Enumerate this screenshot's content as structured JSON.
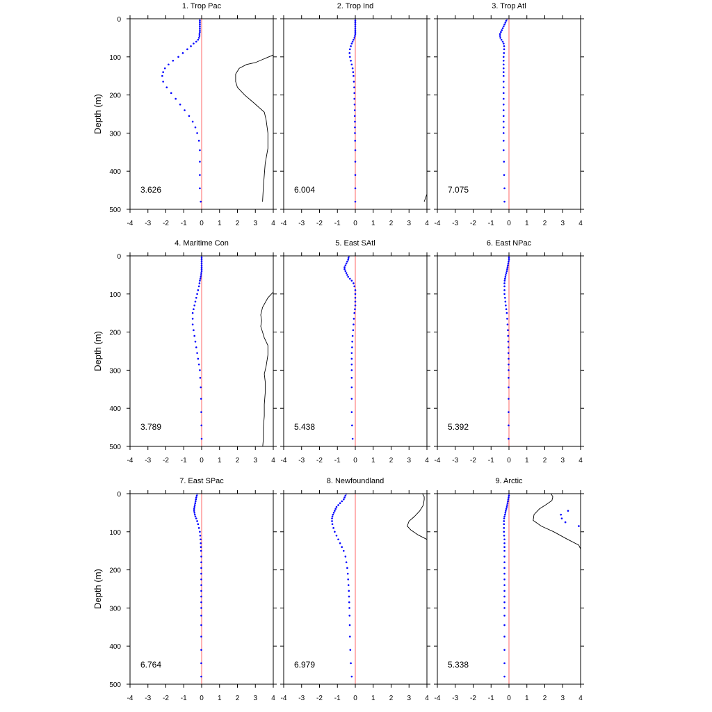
{
  "figure": {
    "ylabel": "Depth (m)",
    "xticks": [
      "-4",
      "-3",
      "-2",
      "-1",
      "0",
      "1",
      "2",
      "3",
      "4"
    ],
    "yticks": [
      "0",
      "100",
      "200",
      "300",
      "400",
      "500"
    ],
    "xlim": [
      -4,
      4
    ],
    "ylim": [
      0,
      500
    ],
    "colors": {
      "dots": "#0000ff",
      "zero_line": "#ff6666",
      "curve": "#000000",
      "axes": "#000000"
    }
  },
  "chart_data": [
    {
      "type": "scatter",
      "title": "1. Trop Pac",
      "value_label": "3.626",
      "xlim": [
        -4,
        4
      ],
      "ylim": [
        0,
        500
      ],
      "y_reversed": true,
      "dots": {
        "depth": [
          0,
          5,
          10,
          15,
          20,
          25,
          30,
          35,
          40,
          45,
          50,
          55,
          60,
          65,
          72,
          80,
          90,
          100,
          110,
          120,
          130,
          140,
          150,
          165,
          180,
          195,
          210,
          225,
          240,
          255,
          270,
          285,
          300,
          320,
          345,
          375,
          410,
          445,
          480
        ],
        "value": [
          -0.1,
          -0.1,
          -0.1,
          -0.1,
          -0.1,
          -0.1,
          -0.1,
          -0.1,
          -0.12,
          -0.12,
          -0.15,
          -0.2,
          -0.3,
          -0.45,
          -0.6,
          -0.8,
          -1.05,
          -1.3,
          -1.6,
          -1.85,
          -2.05,
          -2.15,
          -2.2,
          -2.15,
          -1.95,
          -1.7,
          -1.45,
          -1.2,
          -0.95,
          -0.7,
          -0.5,
          -0.35,
          -0.25,
          -0.15,
          -0.1,
          -0.1,
          -0.1,
          -0.1,
          -0.05
        ]
      },
      "curve": {
        "x": [
          4.0,
          3.5,
          3.0,
          2.5,
          2.1,
          1.9,
          1.9,
          2.0,
          2.4,
          2.9,
          3.5,
          3.6,
          3.7,
          3.7,
          3.55,
          3.45,
          3.4
        ],
        "depth": [
          95,
          105,
          115,
          120,
          130,
          145,
          165,
          180,
          200,
          220,
          245,
          265,
          300,
          340,
          380,
          440,
          480
        ]
      }
    },
    {
      "type": "scatter",
      "title": "2. Trop Ind",
      "value_label": "6.004",
      "xlim": [
        -4,
        4
      ],
      "ylim": [
        0,
        500
      ],
      "y_reversed": true,
      "dots": {
        "depth": [
          0,
          5,
          10,
          15,
          20,
          25,
          30,
          35,
          40,
          45,
          50,
          55,
          60,
          65,
          72,
          80,
          90,
          100,
          110,
          120,
          130,
          140,
          150,
          165,
          180,
          195,
          210,
          225,
          240,
          255,
          270,
          285,
          300,
          320,
          345,
          375,
          410,
          445,
          480
        ],
        "value": [
          0,
          0,
          0,
          0,
          0,
          0,
          0,
          0,
          0,
          -0.02,
          -0.05,
          -0.1,
          -0.15,
          -0.2,
          -0.25,
          -0.3,
          -0.32,
          -0.3,
          -0.25,
          -0.2,
          -0.15,
          -0.12,
          -0.1,
          -0.08,
          -0.06,
          -0.05,
          -0.05,
          -0.04,
          -0.03,
          -0.03,
          -0.02,
          -0.02,
          -0.02,
          -0.01,
          0,
          0,
          0,
          0,
          0
        ]
      },
      "curve": {
        "x": [
          3.85,
          4.0
        ],
        "depth": [
          480,
          460
        ]
      }
    },
    {
      "type": "scatter",
      "title": "3. Trop Atl",
      "value_label": "7.075",
      "xlim": [
        -4,
        4
      ],
      "ylim": [
        0,
        500
      ],
      "y_reversed": true,
      "dots": {
        "depth": [
          0,
          5,
          10,
          15,
          20,
          25,
          30,
          35,
          40,
          45,
          50,
          55,
          60,
          65,
          72,
          80,
          90,
          100,
          110,
          120,
          130,
          140,
          150,
          165,
          180,
          195,
          210,
          225,
          240,
          255,
          270,
          285,
          300,
          320,
          345,
          375,
          410,
          445,
          480
        ],
        "value": [
          -0.1,
          -0.15,
          -0.2,
          -0.25,
          -0.3,
          -0.35,
          -0.4,
          -0.45,
          -0.5,
          -0.5,
          -0.48,
          -0.42,
          -0.35,
          -0.3,
          -0.27,
          -0.27,
          -0.28,
          -0.3,
          -0.3,
          -0.3,
          -0.3,
          -0.3,
          -0.3,
          -0.3,
          -0.3,
          -0.3,
          -0.3,
          -0.3,
          -0.3,
          -0.3,
          -0.3,
          -0.3,
          -0.3,
          -0.3,
          -0.3,
          -0.28,
          -0.27,
          -0.25,
          -0.25
        ]
      }
    },
    {
      "type": "scatter",
      "title": "4. Maritime Con",
      "value_label": "3.789",
      "xlim": [
        -4,
        4
      ],
      "ylim": [
        0,
        500
      ],
      "y_reversed": true,
      "dots": {
        "depth": [
          0,
          5,
          10,
          15,
          20,
          25,
          30,
          35,
          40,
          45,
          50,
          55,
          60,
          65,
          72,
          80,
          90,
          100,
          110,
          120,
          130,
          140,
          150,
          165,
          180,
          195,
          210,
          225,
          240,
          255,
          270,
          285,
          300,
          320,
          345,
          375,
          410,
          445,
          480
        ],
        "value": [
          0,
          0,
          0,
          0,
          0,
          0,
          0,
          0,
          0,
          -0.02,
          -0.03,
          -0.05,
          -0.07,
          -0.1,
          -0.12,
          -0.15,
          -0.2,
          -0.25,
          -0.3,
          -0.35,
          -0.4,
          -0.45,
          -0.5,
          -0.5,
          -0.5,
          -0.45,
          -0.4,
          -0.35,
          -0.3,
          -0.25,
          -0.2,
          -0.15,
          -0.1,
          -0.08,
          -0.05,
          -0.03,
          -0.02,
          -0.01,
          0
        ]
      },
      "curve": {
        "x": [
          4.0,
          3.7,
          3.4,
          3.3,
          3.35,
          3.3,
          3.4,
          3.5,
          3.7,
          3.7,
          3.6,
          3.5,
          3.55,
          3.55,
          3.5,
          3.5,
          3.45,
          3.45,
          3.4,
          3.35
        ],
        "depth": [
          95,
          110,
          135,
          155,
          170,
          185,
          200,
          215,
          235,
          260,
          290,
          310,
          330,
          360,
          390,
          420,
          450,
          480,
          505,
          520
        ]
      }
    },
    {
      "type": "scatter",
      "title": "5. East SAtl",
      "value_label": "5.438",
      "xlim": [
        -4,
        4
      ],
      "ylim": [
        0,
        500
      ],
      "y_reversed": true,
      "dots": {
        "depth": [
          0,
          5,
          10,
          15,
          20,
          25,
          30,
          35,
          40,
          45,
          50,
          55,
          60,
          65,
          72,
          80,
          90,
          100,
          110,
          120,
          130,
          140,
          150,
          165,
          180,
          195,
          210,
          225,
          240,
          255,
          270,
          285,
          300,
          320,
          345,
          375,
          410,
          445,
          480
        ],
        "value": [
          -0.35,
          -0.38,
          -0.4,
          -0.45,
          -0.5,
          -0.55,
          -0.6,
          -0.6,
          -0.55,
          -0.5,
          -0.45,
          -0.4,
          -0.3,
          -0.2,
          -0.1,
          -0.05,
          0,
          0,
          0,
          0,
          0,
          -0.02,
          -0.05,
          -0.08,
          -0.1,
          -0.12,
          -0.15,
          -0.17,
          -0.18,
          -0.2,
          -0.2,
          -0.2,
          -0.2,
          -0.2,
          -0.2,
          -0.2,
          -0.2,
          -0.18,
          -0.15
        ]
      }
    },
    {
      "type": "scatter",
      "title": "6. East NPac",
      "value_label": "5.392",
      "xlim": [
        -4,
        4
      ],
      "ylim": [
        0,
        500
      ],
      "y_reversed": true,
      "dots": {
        "depth": [
          0,
          5,
          10,
          15,
          20,
          25,
          30,
          35,
          40,
          45,
          50,
          55,
          60,
          65,
          72,
          80,
          90,
          100,
          110,
          120,
          130,
          140,
          150,
          165,
          180,
          195,
          210,
          225,
          240,
          255,
          270,
          285,
          300,
          320,
          345,
          375,
          410,
          445,
          480
        ],
        "value": [
          0,
          0,
          0,
          -0.02,
          -0.04,
          -0.06,
          -0.08,
          -0.1,
          -0.12,
          -0.15,
          -0.18,
          -0.2,
          -0.22,
          -0.24,
          -0.25,
          -0.25,
          -0.25,
          -0.25,
          -0.22,
          -0.2,
          -0.18,
          -0.15,
          -0.12,
          -0.1,
          -0.08,
          -0.06,
          -0.05,
          -0.04,
          -0.03,
          -0.03,
          -0.02,
          -0.02,
          -0.02,
          -0.02,
          -0.02,
          -0.02,
          -0.02,
          -0.02,
          -0.02
        ]
      }
    },
    {
      "type": "scatter",
      "title": "7. East SPac",
      "value_label": "6.764",
      "xlim": [
        -4,
        4
      ],
      "ylim": [
        0,
        500
      ],
      "y_reversed": true,
      "dots": {
        "depth": [
          0,
          5,
          10,
          15,
          20,
          25,
          30,
          35,
          40,
          45,
          50,
          55,
          60,
          65,
          72,
          80,
          90,
          100,
          110,
          120,
          130,
          140,
          150,
          165,
          180,
          195,
          210,
          225,
          240,
          255,
          270,
          285,
          300,
          320,
          345,
          375,
          410,
          445,
          480
        ],
        "value": [
          -0.25,
          -0.27,
          -0.3,
          -0.32,
          -0.34,
          -0.36,
          -0.38,
          -0.4,
          -0.42,
          -0.42,
          -0.4,
          -0.38,
          -0.35,
          -0.3,
          -0.25,
          -0.2,
          -0.15,
          -0.1,
          -0.08,
          -0.06,
          -0.05,
          -0.04,
          -0.03,
          -0.02,
          -0.02,
          -0.02,
          -0.02,
          -0.02,
          -0.02,
          -0.02,
          -0.02,
          -0.02,
          -0.02,
          -0.02,
          -0.02,
          -0.02,
          -0.02,
          -0.02,
          -0.02
        ]
      }
    },
    {
      "type": "scatter",
      "title": "8. Newfoundland",
      "value_label": "6.979",
      "xlim": [
        -4,
        4
      ],
      "ylim": [
        0,
        500
      ],
      "y_reversed": true,
      "dots": {
        "depth": [
          0,
          5,
          10,
          15,
          20,
          25,
          30,
          35,
          40,
          45,
          50,
          55,
          60,
          65,
          72,
          80,
          90,
          100,
          110,
          120,
          130,
          140,
          150,
          165,
          180,
          195,
          210,
          225,
          240,
          255,
          270,
          285,
          300,
          320,
          345,
          375,
          410,
          445,
          480
        ],
        "value": [
          -0.5,
          -0.55,
          -0.6,
          -0.65,
          -0.75,
          -0.85,
          -0.95,
          -1.05,
          -1.1,
          -1.15,
          -1.2,
          -1.25,
          -1.28,
          -1.3,
          -1.3,
          -1.28,
          -1.22,
          -1.15,
          -1.05,
          -0.95,
          -0.85,
          -0.75,
          -0.65,
          -0.55,
          -0.5,
          -0.45,
          -0.42,
          -0.4,
          -0.38,
          -0.36,
          -0.35,
          -0.34,
          -0.33,
          -0.32,
          -0.31,
          -0.3,
          -0.28,
          -0.25,
          -0.2
        ]
      },
      "curve": {
        "x": [
          3.75,
          3.85,
          3.85,
          3.8,
          3.6,
          3.3,
          3.0,
          2.9,
          3.1,
          3.5,
          4.0
        ],
        "depth": [
          0,
          8,
          15,
          30,
          45,
          60,
          72,
          85,
          95,
          108,
          120
        ]
      }
    },
    {
      "type": "scatter",
      "title": "9. Arctic",
      "value_label": "5.338",
      "xlim": [
        -4,
        4
      ],
      "ylim": [
        0,
        500
      ],
      "y_reversed": true,
      "dots": {
        "depth": [
          0,
          5,
          10,
          15,
          20,
          25,
          30,
          35,
          40,
          45,
          50,
          55,
          60,
          65,
          72,
          80,
          90,
          100,
          110,
          120,
          130,
          140,
          150,
          165,
          180,
          195,
          210,
          225,
          240,
          255,
          270,
          285,
          300,
          320,
          345,
          375,
          410,
          445,
          480
        ],
        "value": [
          0,
          0,
          -0.02,
          -0.04,
          -0.06,
          -0.08,
          -0.1,
          -0.12,
          -0.15,
          -0.18,
          -0.2,
          -0.22,
          -0.25,
          -0.27,
          -0.28,
          -0.28,
          -0.28,
          -0.28,
          -0.27,
          -0.25,
          -0.25,
          -0.25,
          -0.25,
          -0.25,
          -0.25,
          -0.25,
          -0.25,
          -0.25,
          -0.25,
          -0.25,
          -0.25,
          -0.25,
          -0.25,
          -0.25,
          -0.25,
          -0.25,
          -0.25,
          -0.25,
          -0.25
        ]
      },
      "extra_dots": {
        "value": [
          3.3,
          2.9,
          2.95,
          3.15,
          3.9
        ],
        "depth": [
          45,
          55,
          65,
          75,
          85
        ]
      },
      "curve": {
        "x": [
          2.35,
          2.45,
          2.4,
          2.1,
          1.7,
          1.4,
          1.35,
          1.8,
          2.5,
          3.2,
          3.9,
          4.0
        ],
        "depth": [
          0,
          8,
          18,
          28,
          40,
          55,
          70,
          85,
          100,
          118,
          135,
          145
        ]
      }
    }
  ]
}
